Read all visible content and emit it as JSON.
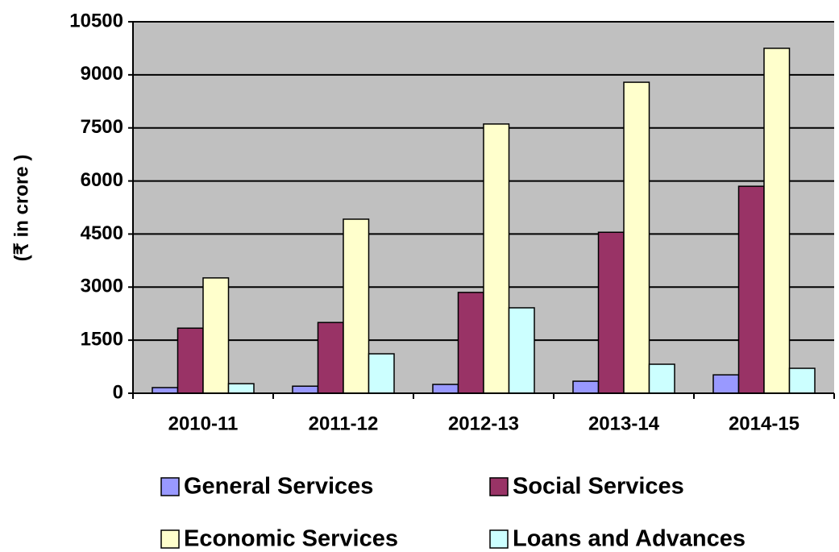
{
  "chart_data": {
    "type": "bar",
    "y_label": "(₹ in crore )",
    "categories": [
      "2010-11",
      "2011-12",
      "2012-13",
      "2013-14",
      "2014-15"
    ],
    "series": [
      {
        "name": "General Services",
        "color": "#9999ff",
        "values": [
          160,
          200,
          250,
          340,
          520
        ]
      },
      {
        "name": "Social Services",
        "color": "#993366",
        "values": [
          1840,
          2000,
          2850,
          4550,
          5850
        ]
      },
      {
        "name": "Economic Services",
        "color": "#ffffcc",
        "values": [
          3260,
          4920,
          7610,
          8790,
          9750
        ]
      },
      {
        "name": "Loans and Advances",
        "color": "#ccffff",
        "values": [
          270,
          1115,
          2415,
          820,
          705
        ]
      }
    ],
    "ylim": [
      0,
      10500
    ],
    "yticks": [
      0,
      1500,
      3000,
      4500,
      6000,
      7500,
      9000,
      10500
    ],
    "grid": true
  }
}
